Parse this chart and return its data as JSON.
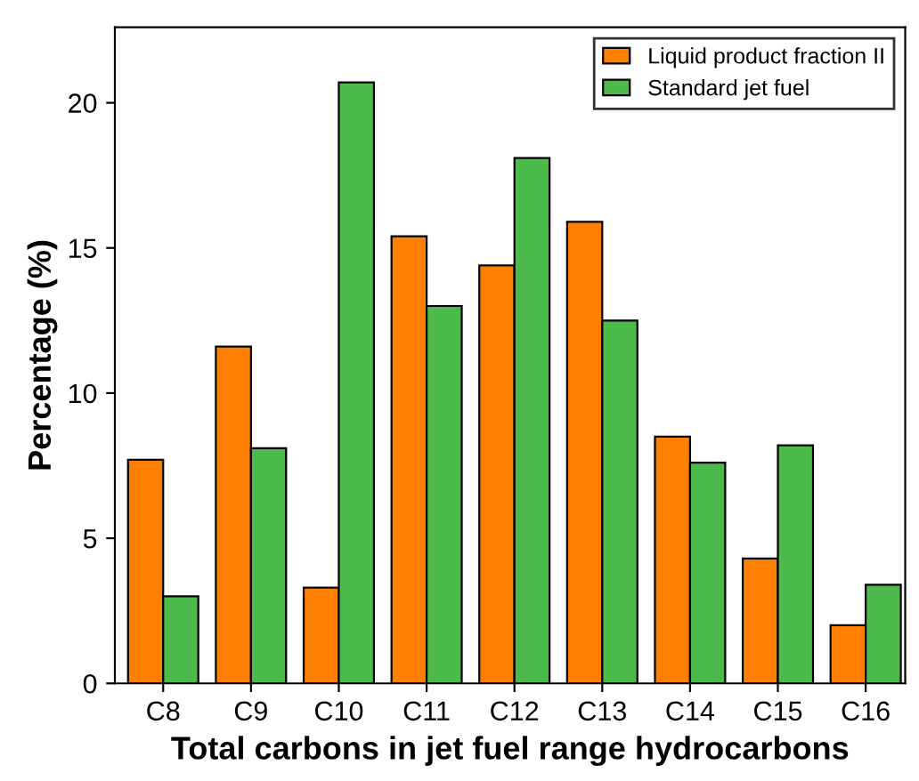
{
  "chart_data": {
    "type": "bar",
    "xlabel": "Total carbons in jet fuel range hydrocarbons",
    "ylabel": "Percentage (%)",
    "categories": [
      "C8",
      "C9",
      "C10",
      "C11",
      "C12",
      "C13",
      "C14",
      "C15",
      "C16"
    ],
    "series": [
      {
        "name": "Liquid product fraction II",
        "color": "#ff8000",
        "values": [
          7.7,
          11.6,
          3.3,
          15.4,
          14.4,
          15.9,
          8.5,
          4.3,
          2.0
        ]
      },
      {
        "name": "Standard jet fuel",
        "color": "#4cbb4c",
        "values": [
          3.0,
          8.1,
          20.7,
          13.0,
          18.1,
          12.5,
          7.6,
          8.2,
          3.4
        ]
      }
    ],
    "ylim": [
      0,
      22.6
    ],
    "yticks": [
      0,
      5,
      10,
      15,
      20
    ],
    "grid": false,
    "legend": "top right"
  }
}
